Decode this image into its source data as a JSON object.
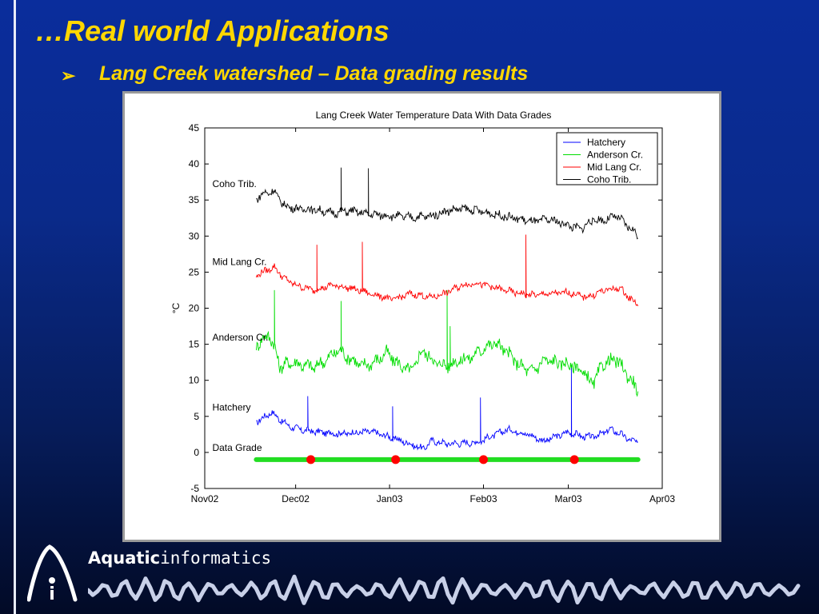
{
  "slide": {
    "title": "…Real world Applications",
    "bullet_symbol": "➢",
    "subtitle": "Lang Creek watershed – Data grading results"
  },
  "logo": {
    "brand_bold": "Aquatic",
    "brand_light": "informatics",
    "icon_letter": "i"
  },
  "colors": {
    "title": "#ffd700",
    "background_top": "#0a2d9c",
    "background_bottom": "#020a26"
  },
  "chart_data": {
    "type": "line",
    "title": "Lang Creek Water Temperature Data With Data Grades",
    "ylabel": "°C",
    "ylim": [
      -5,
      45
    ],
    "yticks": [
      -5,
      0,
      5,
      10,
      15,
      20,
      25,
      30,
      35,
      40,
      45
    ],
    "xticks": [
      "Nov02",
      "Dec02",
      "Jan03",
      "Feb03",
      "Mar03",
      "Apr03"
    ],
    "xtick_days": [
      0,
      30,
      61,
      92,
      120,
      151
    ],
    "legend_position": "top-right",
    "grid": false,
    "series": [
      {
        "name": "Hatchery",
        "color": "#0000ff",
        "base": 2.7,
        "noise": 0.4,
        "x": [
          17,
          20,
          22,
          25,
          28,
          32,
          38,
          45,
          55,
          65,
          72,
          75,
          80,
          90,
          100,
          106,
          112,
          120,
          126,
          130,
          134,
          137,
          140,
          143
        ],
        "y": [
          4.2,
          5.0,
          5.6,
          4.5,
          3.6,
          3.1,
          2.8,
          2.6,
          2.9,
          1.6,
          0.5,
          1.6,
          1.2,
          1.4,
          3.2,
          2.6,
          1.6,
          2.8,
          2.1,
          2.4,
          3.2,
          2.6,
          1.8,
          1.3
        ],
        "spikes": [
          [
            34,
            7.8
          ],
          [
            62,
            6.4
          ],
          [
            91,
            7.6
          ],
          [
            121,
            12.0
          ]
        ]
      },
      {
        "name": "Anderson Cr.",
        "color": "#00dd00",
        "base": 12.5,
        "noise": 0.8,
        "x": [
          17,
          19,
          21,
          23,
          25,
          28,
          32,
          36,
          40,
          44,
          48,
          52,
          56,
          60,
          64,
          68,
          72,
          76,
          80,
          84,
          88,
          92,
          96,
          100,
          104,
          108,
          112,
          116,
          120,
          124,
          128,
          132,
          136,
          140,
          143
        ],
        "y": [
          15.0,
          15.5,
          16.5,
          14.5,
          11.8,
          12.5,
          12.2,
          11.8,
          12.8,
          14.2,
          13.0,
          12.0,
          12.5,
          13.8,
          12.2,
          11.2,
          14.2,
          12.5,
          12.0,
          12.8,
          13.2,
          14.5,
          15.2,
          13.8,
          12.0,
          11.2,
          12.8,
          12.5,
          12.2,
          11.5,
          9.5,
          12.5,
          12.8,
          10.5,
          8.5
        ],
        "spikes": [
          [
            23,
            22.5
          ],
          [
            45,
            21.0
          ],
          [
            80,
            22.5
          ],
          [
            81,
            17.5
          ]
        ]
      },
      {
        "name": "Mid Lang Cr.",
        "color": "#ff0000",
        "base": 22.8,
        "noise": 0.4,
        "x": [
          17,
          20,
          23,
          26,
          30,
          36,
          42,
          48,
          55,
          62,
          68,
          75,
          80,
          85,
          90,
          96,
          102,
          108,
          114,
          120,
          126,
          132,
          137,
          140,
          143
        ],
        "y": [
          24.5,
          25.2,
          25.7,
          24.2,
          23.2,
          22.5,
          23.2,
          22.8,
          22.0,
          21.2,
          22.0,
          21.5,
          22.2,
          23.2,
          23.5,
          22.8,
          22.2,
          21.8,
          22.0,
          22.2,
          21.5,
          22.5,
          22.8,
          21.5,
          20.5
        ],
        "spikes": [
          [
            37,
            28.8
          ],
          [
            52,
            29.2
          ],
          [
            106,
            30.2
          ]
        ]
      },
      {
        "name": "Coho Trib.",
        "color": "#000000",
        "base": 33.5,
        "noise": 0.5,
        "x": [
          17,
          20,
          23,
          26,
          30,
          36,
          42,
          48,
          55,
          62,
          68,
          75,
          80,
          85,
          90,
          96,
          102,
          108,
          114,
          120,
          124,
          128,
          132,
          136,
          140,
          143
        ],
        "y": [
          35.2,
          36.0,
          36.2,
          34.3,
          33.8,
          33.7,
          33.2,
          33.5,
          33.0,
          32.8,
          32.6,
          32.8,
          33.5,
          33.8,
          33.5,
          33.0,
          32.5,
          32.0,
          32.3,
          31.5,
          31.0,
          32.2,
          32.2,
          32.8,
          31.2,
          30.2
        ],
        "spikes": [
          [
            45,
            39.5
          ],
          [
            54,
            39.4
          ]
        ]
      }
    ],
    "annotations": [
      {
        "text": "Coho Trib.",
        "x": 2.5,
        "y": 36.8
      },
      {
        "text": "Mid Lang Cr.",
        "x": 2.5,
        "y": 26.0
      },
      {
        "text": "Anderson Cr.",
        "x": 2.5,
        "y": 15.5
      },
      {
        "text": "Hatchery",
        "x": 2.5,
        "y": 5.8
      },
      {
        "text": "Data Grade",
        "x": 2.5,
        "y": 0.2
      }
    ],
    "data_grade": {
      "y": -1,
      "x_start": 17,
      "x_end": 143,
      "line_color": "#22dd22",
      "marker_color": "#ff0000",
      "markers": [
        35,
        63,
        92,
        122
      ]
    }
  }
}
